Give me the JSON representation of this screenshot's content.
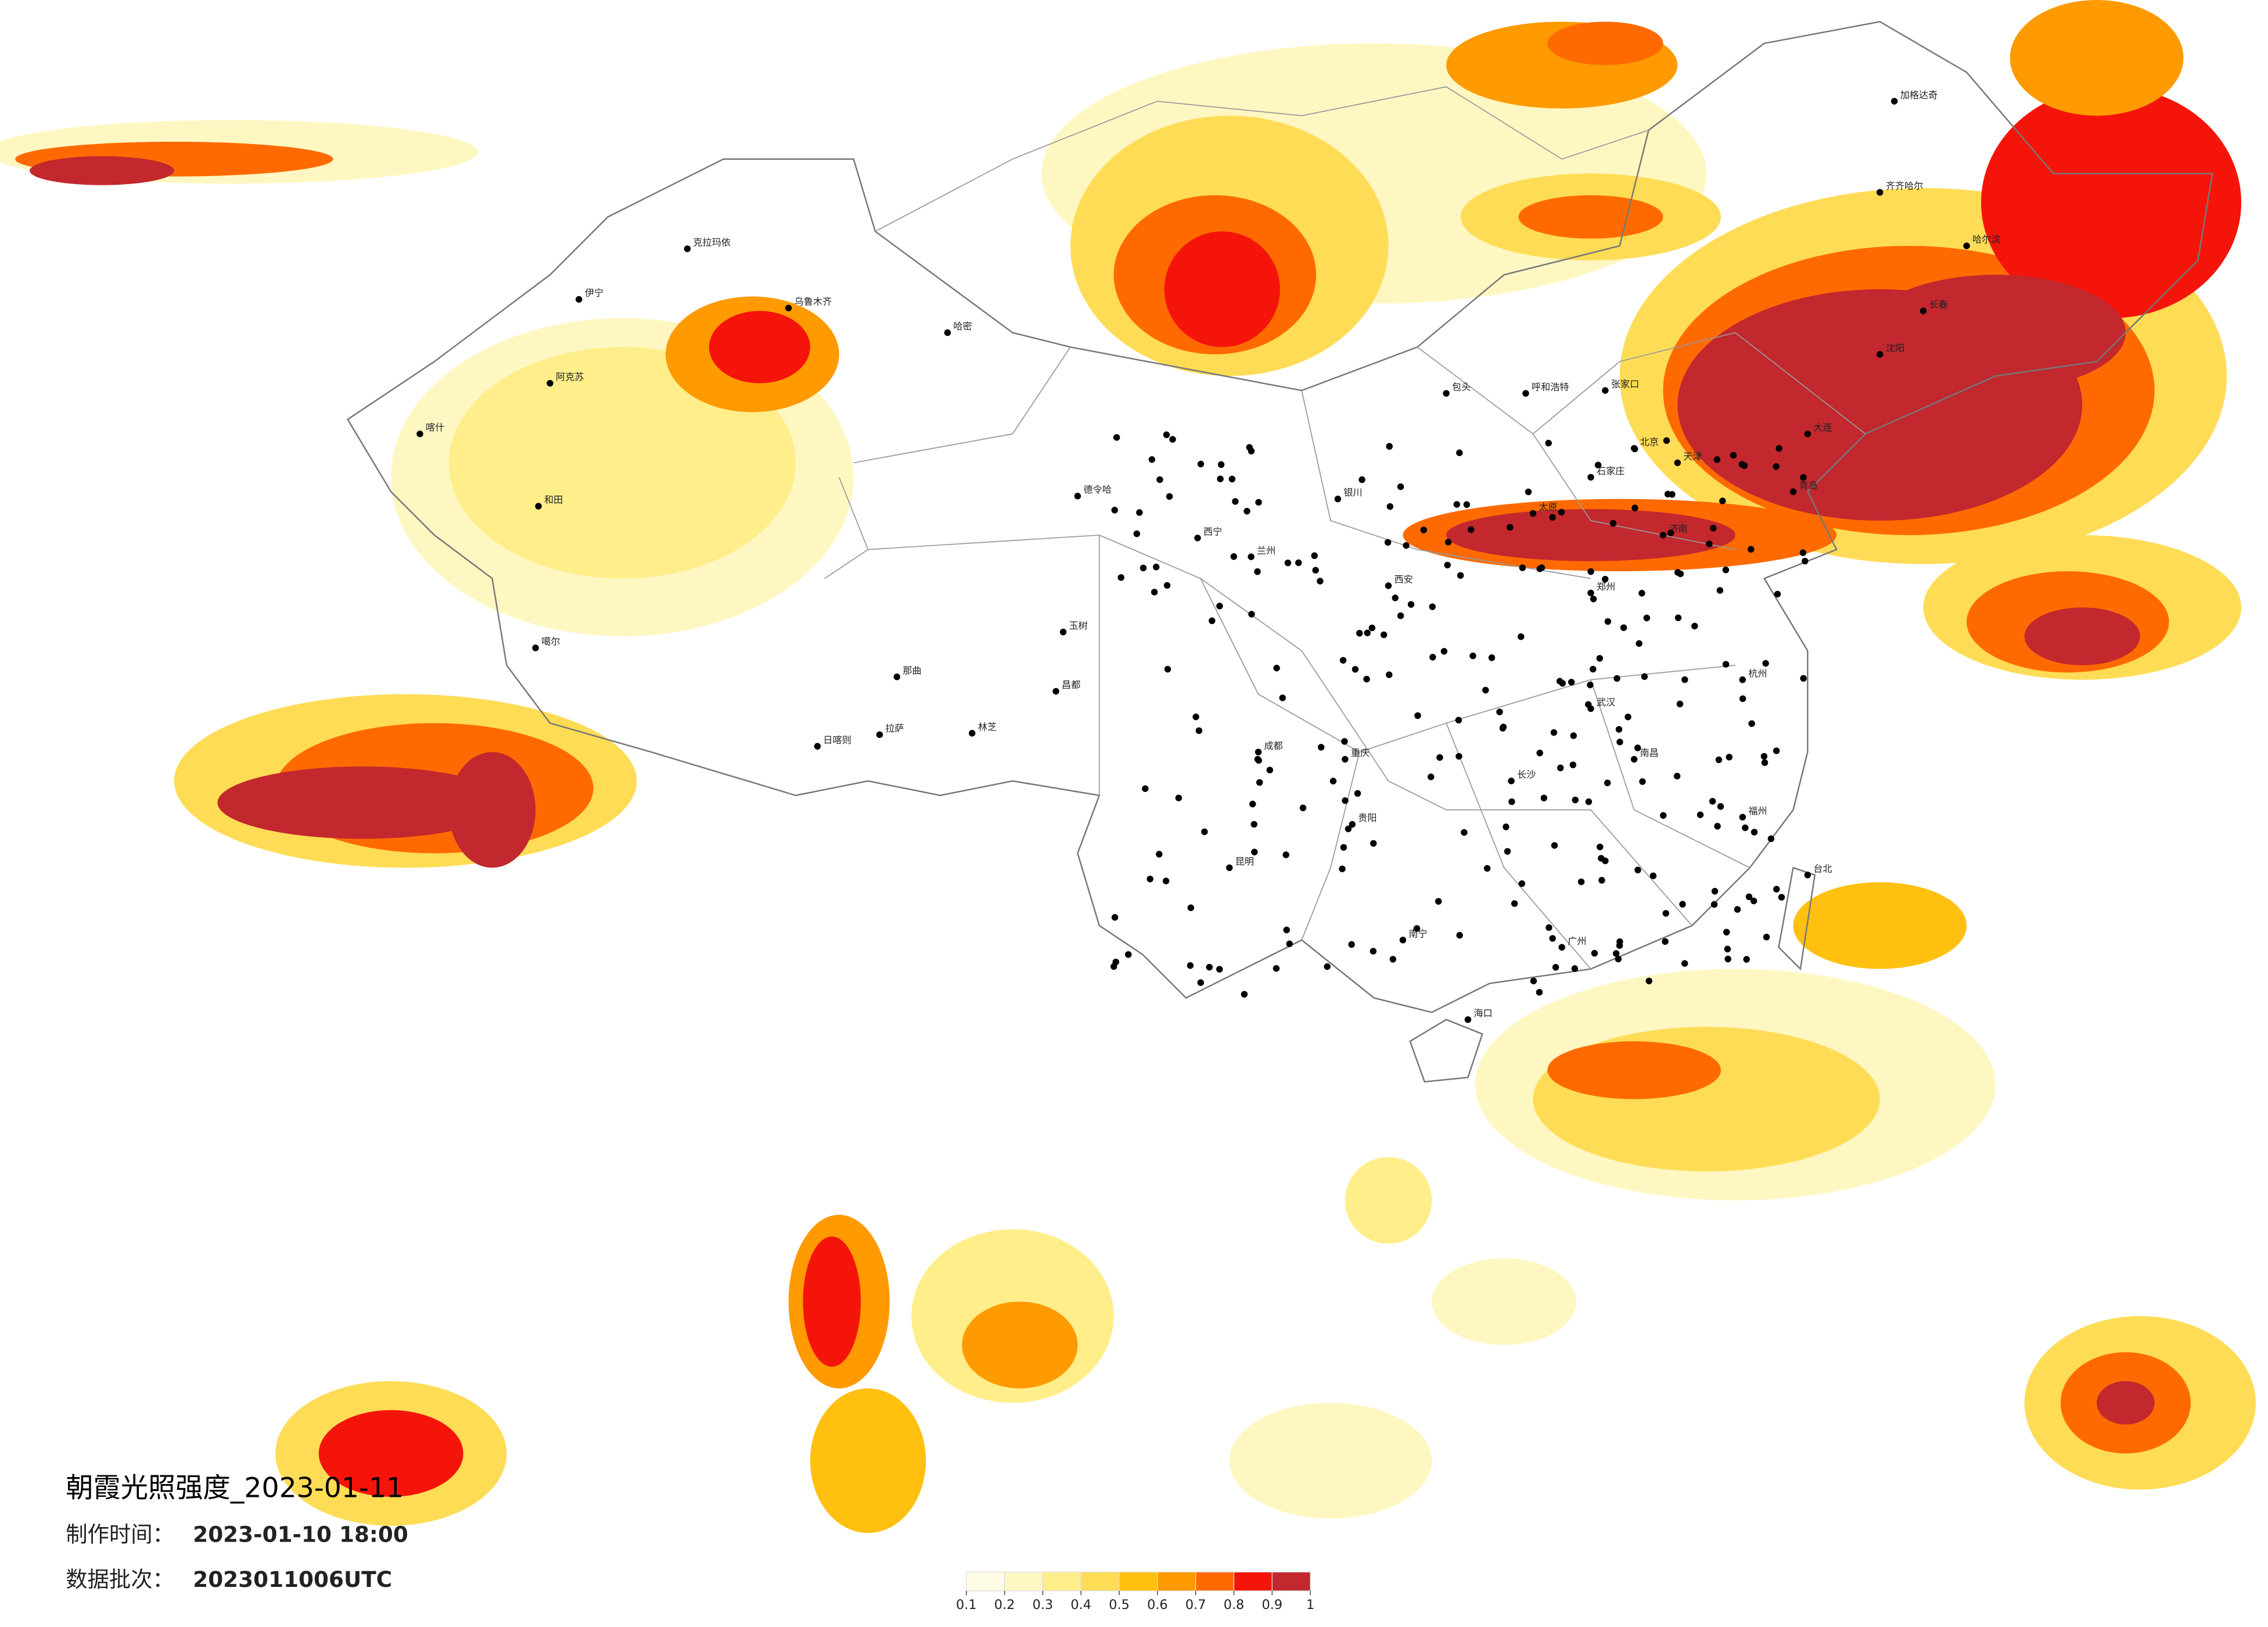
{
  "title": "朝霞光照强度_2023-01-11",
  "made_time_label": "制作时间：",
  "made_time": "2023-01-10 18:00",
  "batch_label": "数据批次：",
  "batch": "2023011006UTC",
  "legend": {
    "colors": [
      "#fffce6",
      "#fff7c2",
      "#ffee8a",
      "#ffdc55",
      "#ffc010",
      "#ff9a00",
      "#ff6a00",
      "#f5140a",
      "#c2282e"
    ],
    "ticks": [
      0.1,
      0.2,
      0.3,
      0.4,
      0.5,
      0.6,
      0.7,
      0.8,
      0.9,
      1
    ]
  },
  "cities": [
    "克拉玛依",
    "伊宁",
    "乌鲁木齐",
    "阿克苏",
    "喀什",
    "和田",
    "哈密",
    "德令哈",
    "噶尔",
    "日喀则",
    "拉萨",
    "林芝",
    "那曲",
    "昌都",
    "玉树",
    "西宁",
    "兰州",
    "银川",
    "包头",
    "呼和浩特",
    "张家口",
    "太原",
    "石家庄",
    "北京",
    "天津",
    "济南",
    "青岛",
    "郑州",
    "西安",
    "成都",
    "重庆",
    "贵阳",
    "昆明",
    "南宁",
    "广州",
    "长沙",
    "武汉",
    "南昌",
    "杭州",
    "福州",
    "海口",
    "台北",
    "哈尔滨",
    "长春",
    "沈阳",
    "齐齐哈尔",
    "加格达奇",
    "大连"
  ]
}
